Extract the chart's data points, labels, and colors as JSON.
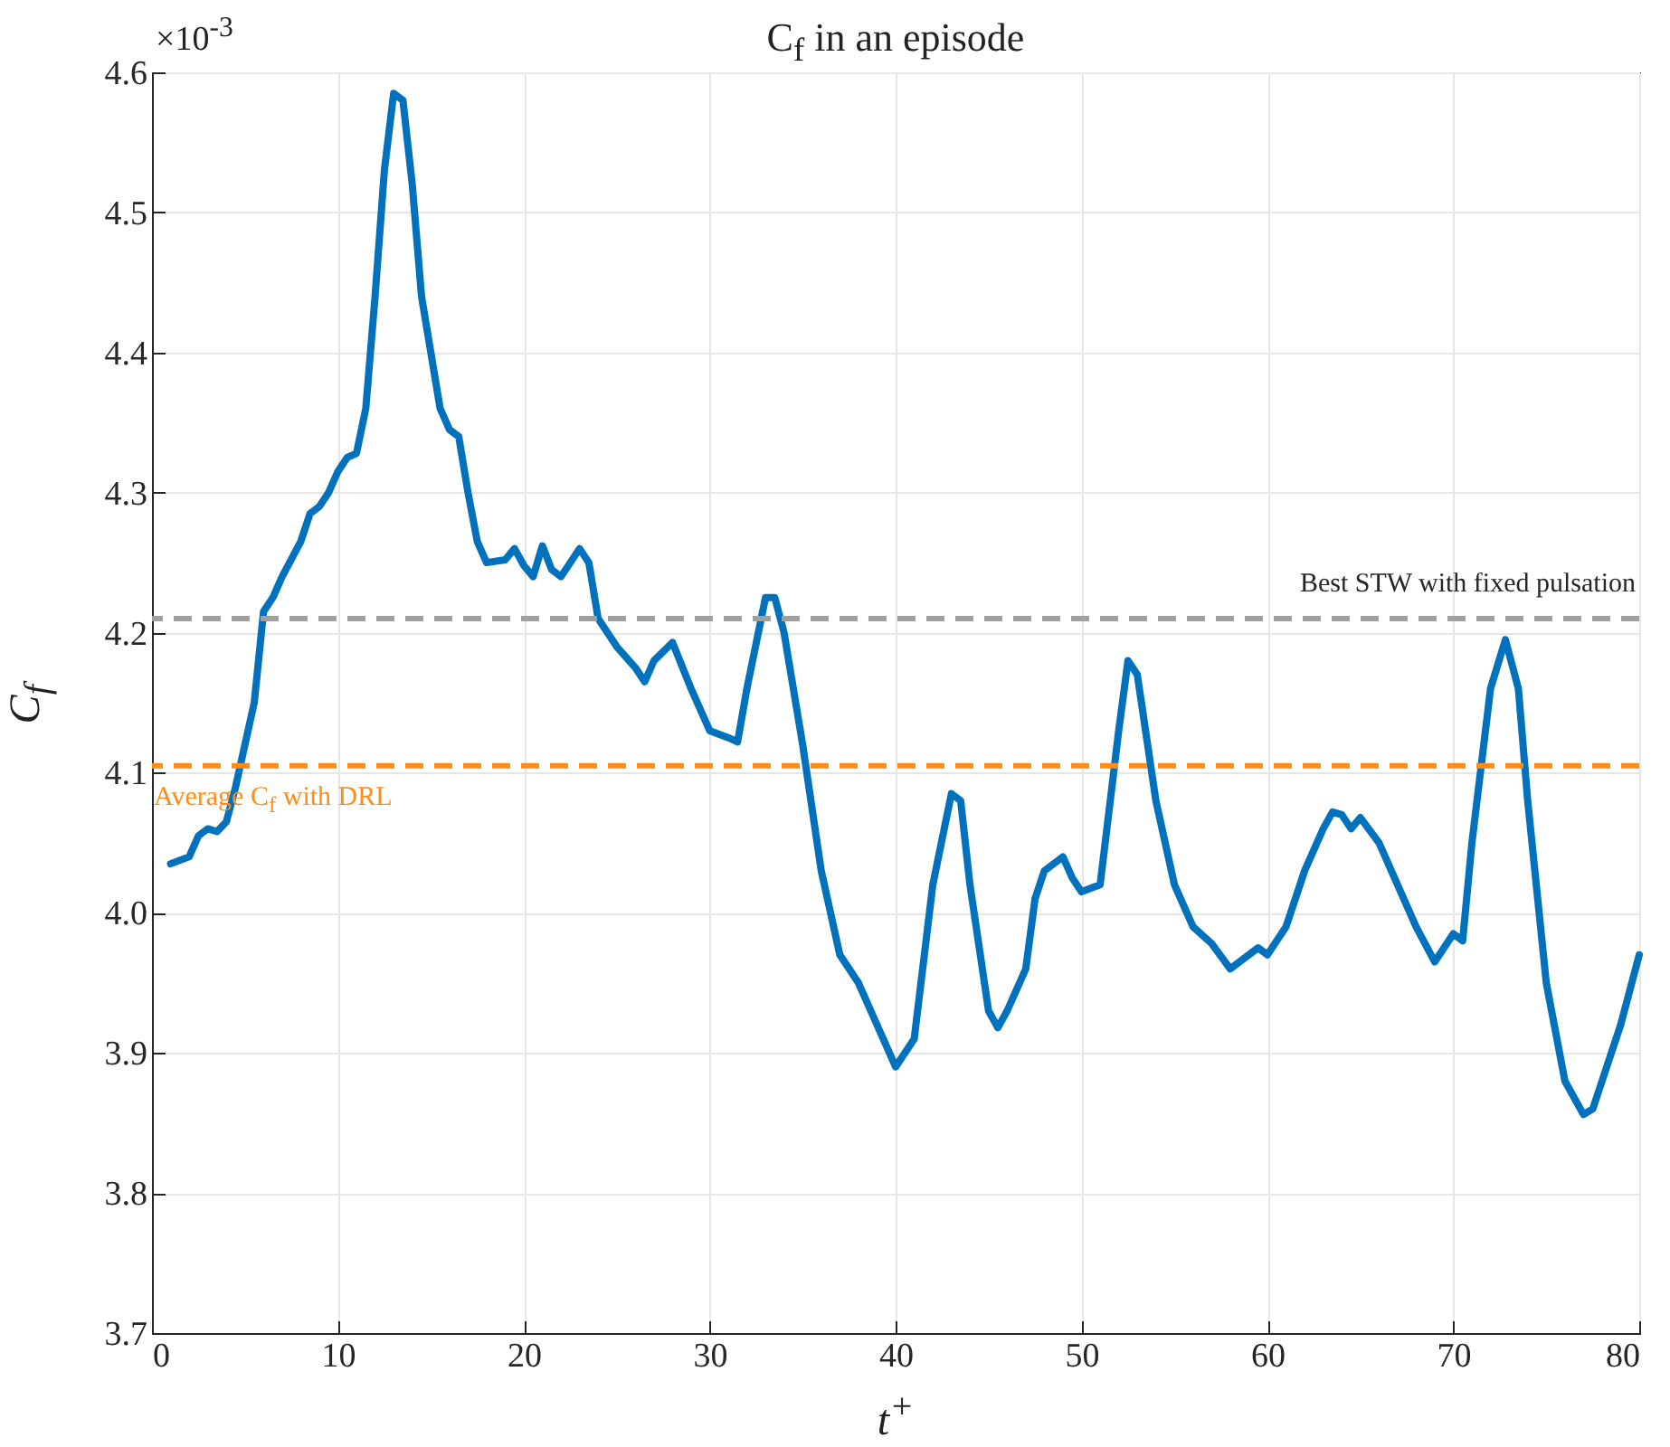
{
  "chart_data": {
    "type": "line",
    "title": "C$_{f}$ in an episode",
    "xlabel": "t$^{+}$",
    "ylabel": "C$_{f}$",
    "annotations": [
      "×10$^{-3}$"
    ],
    "x": [
      1,
      2,
      2.5,
      3,
      3.5,
      4,
      4.5,
      5,
      5.5,
      6,
      6.5,
      7,
      8,
      8.5,
      9,
      9.5,
      10,
      10.5,
      11,
      11.5,
      12,
      12.5,
      13,
      13.5,
      14,
      14.5,
      15,
      15.5,
      16,
      16.5,
      17,
      17.5,
      18,
      19,
      19.5,
      20,
      20.5,
      21,
      21.5,
      22,
      23,
      23.5,
      24,
      25,
      26,
      26.5,
      27,
      28,
      29,
      30,
      31,
      31.5,
      32,
      33,
      33.5,
      34,
      35,
      36,
      37,
      38,
      39,
      40,
      41,
      42,
      43,
      43.5,
      44,
      45,
      45.5,
      46,
      47,
      47.5,
      48,
      49,
      49.5,
      50,
      51,
      52,
      52.5,
      53,
      54,
      55,
      56,
      57,
      58,
      59,
      59.5,
      60,
      61,
      62,
      63,
      63.5,
      64,
      64.5,
      65,
      66,
      67,
      68,
      69,
      70,
      70.5,
      71,
      72,
      72.8,
      73.5,
      74,
      75,
      76,
      77,
      77.5,
      78,
      79,
      80
    ],
    "series": [
      {
        "color": "#0072bd",
        "values": [
          4.035,
          4.04,
          4.055,
          4.06,
          4.058,
          4.065,
          4.09,
          4.12,
          4.15,
          4.215,
          4.225,
          4.24,
          4.265,
          4.285,
          4.29,
          4.3,
          4.315,
          4.325,
          4.328,
          4.36,
          4.44,
          4.53,
          4.585,
          4.58,
          4.52,
          4.44,
          4.4,
          4.36,
          4.345,
          4.34,
          4.3,
          4.265,
          4.25,
          4.252,
          4.26,
          4.248,
          4.24,
          4.262,
          4.245,
          4.24,
          4.26,
          4.25,
          4.21,
          4.19,
          4.175,
          4.165,
          4.18,
          4.193,
          4.16,
          4.13,
          4.125,
          4.122,
          4.16,
          4.225,
          4.225,
          4.2,
          4.12,
          4.03,
          3.97,
          3.95,
          3.92,
          3.89,
          3.91,
          4.02,
          4.085,
          4.08,
          4.02,
          3.93,
          3.918,
          3.93,
          3.96,
          4.01,
          4.03,
          4.04,
          4.025,
          4.015,
          4.02,
          4.13,
          4.18,
          4.17,
          4.08,
          4.02,
          3.99,
          3.978,
          3.96,
          3.97,
          3.975,
          3.97,
          3.99,
          4.03,
          4.06,
          4.072,
          4.07,
          4.06,
          4.068,
          4.05,
          4.02,
          3.99,
          3.965,
          3.985,
          3.98,
          4.05,
          4.16,
          4.195,
          4.16,
          4.08,
          3.95,
          3.88,
          3.856,
          3.86,
          3.88,
          3.92,
          3.97
        ]
      }
    ],
    "ref_lines": [
      {
        "axis": "y",
        "value": 4.21,
        "label": "Best STW with fixed pulsation",
        "color": "#a0a0a0",
        "line_style": "dashed"
      },
      {
        "axis": "y",
        "value": 4.105,
        "label": "Average C$_{f}$ with DRL",
        "color": "#ff8c1a",
        "line_style": "dashed"
      }
    ],
    "xlim": [
      0,
      80
    ],
    "xticks": [
      0,
      10,
      20,
      30,
      40,
      50,
      60,
      70,
      80
    ],
    "ylim": [
      3.7,
      4.6
    ],
    "yticks": [
      3.7,
      3.8,
      3.9,
      {
        "value": 4,
        "label": "4.0"
      },
      4.1,
      4.2,
      4.3,
      4.4,
      4.5,
      4.6
    ],
    "grid": true,
    "line_style": "solid",
    "marker": "none"
  }
}
